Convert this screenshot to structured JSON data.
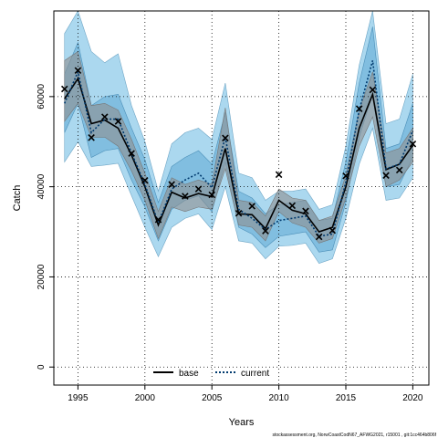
{
  "chart_data": {
    "type": "line",
    "xlabel": "Years",
    "ylabel": "Catch",
    "xlim": [
      1993.2,
      2021.2
    ],
    "ylim": [
      -4000,
      79000
    ],
    "x_ticks": [
      1995,
      2000,
      2005,
      2010,
      2015,
      2020
    ],
    "y_ticks": [
      0,
      20000,
      40000,
      60000
    ],
    "grid": true,
    "grid_style": "dotted",
    "legend_position": "bottom",
    "years": [
      1994,
      1995,
      1996,
      1997,
      1998,
      1999,
      2000,
      2001,
      2002,
      2003,
      2004,
      2005,
      2006,
      2007,
      2008,
      2009,
      2010,
      2011,
      2012,
      2013,
      2014,
      2015,
      2016,
      2017,
      2018,
      2019,
      2020
    ],
    "observed": {
      "marker": "x",
      "values": [
        61700,
        65800,
        50900,
        55500,
        54500,
        47400,
        41400,
        32700,
        40500,
        37900,
        39500,
        38200,
        50800,
        34100,
        35700,
        30200,
        42700,
        35800,
        34600,
        28900,
        30300,
        42400,
        57300,
        61500,
        42500,
        43700,
        49500
      ]
    },
    "series": [
      {
        "name": "base",
        "color": "#000000",
        "line_style": "solid",
        "band_color": "#909090",
        "values": [
          59500,
          64000,
          54000,
          54800,
          53000,
          47000,
          40000,
          31500,
          38800,
          37500,
          38500,
          37800,
          48500,
          34000,
          33800,
          30700,
          37000,
          34800,
          34000,
          30000,
          31000,
          40000,
          53000,
          60500,
          43800,
          45000,
          49200
        ],
        "inner": [
          [
            54500,
            68000
          ],
          [
            58500,
            70000
          ],
          [
            51000,
            58000
          ],
          [
            51000,
            58500
          ],
          [
            49000,
            57000
          ],
          [
            43500,
            50500
          ],
          [
            37000,
            43000
          ],
          [
            28500,
            34500
          ],
          [
            35500,
            42000
          ],
          [
            34500,
            40500
          ],
          [
            35500,
            41500
          ],
          [
            35000,
            40500
          ],
          [
            44000,
            57500
          ],
          [
            31500,
            37000
          ],
          [
            31000,
            36500
          ],
          [
            28000,
            33500
          ],
          [
            34500,
            39500
          ],
          [
            32000,
            37500
          ],
          [
            31000,
            37000
          ],
          [
            27500,
            32500
          ],
          [
            28500,
            33500
          ],
          [
            37500,
            42500
          ],
          [
            49000,
            57000
          ],
          [
            55500,
            65500
          ],
          [
            40000,
            47500
          ],
          [
            41500,
            48500
          ],
          [
            45500,
            53000
          ]
        ]
      },
      {
        "name": "current",
        "color": "#003a6e",
        "line_style": "dotted",
        "band_color": "#8fcbea",
        "values": [
          58500,
          65500,
          52000,
          55000,
          55000,
          47500,
          40500,
          32000,
          39500,
          41500,
          43000,
          39800,
          51000,
          35000,
          33000,
          30500,
          32500,
          33000,
          33500,
          29000,
          29500,
          41000,
          57000,
          68000,
          44000,
          45000,
          52500
        ],
        "outer": [
          [
            45500,
            74000
          ],
          [
            50000,
            82000
          ],
          [
            44500,
            70000
          ],
          [
            44800,
            67500
          ],
          [
            45200,
            69500
          ],
          [
            38000,
            58000
          ],
          [
            31000,
            50000
          ],
          [
            24500,
            39000
          ],
          [
            31000,
            49500
          ],
          [
            33000,
            52000
          ],
          [
            34000,
            53000
          ],
          [
            30500,
            50500
          ],
          [
            40000,
            63000
          ],
          [
            28000,
            43000
          ],
          [
            27500,
            42000
          ],
          [
            24000,
            37000
          ],
          [
            26800,
            39000
          ],
          [
            27000,
            39000
          ],
          [
            27500,
            39500
          ],
          [
            23000,
            35000
          ],
          [
            24000,
            36000
          ],
          [
            33000,
            49000
          ],
          [
            45000,
            67000
          ],
          [
            53000,
            82000
          ],
          [
            37000,
            54000
          ],
          [
            37500,
            55000
          ],
          [
            42000,
            65000
          ]
        ],
        "inner": [
          [
            52000,
            65000
          ],
          [
            58500,
            72000
          ],
          [
            46500,
            58000
          ],
          [
            48000,
            60000
          ],
          [
            48500,
            60500
          ],
          [
            41500,
            53000
          ],
          [
            35500,
            46000
          ],
          [
            28000,
            36500
          ],
          [
            35000,
            44500
          ],
          [
            37000,
            46500
          ],
          [
            38000,
            48000
          ],
          [
            34500,
            45000
          ],
          [
            45500,
            56500
          ],
          [
            31000,
            39000
          ],
          [
            29500,
            37500
          ],
          [
            26500,
            34000
          ],
          [
            29000,
            36000
          ],
          [
            29500,
            36500
          ],
          [
            30000,
            37000
          ],
          [
            25500,
            32500
          ],
          [
            26000,
            33000
          ],
          [
            36500,
            45500
          ],
          [
            51000,
            63000
          ],
          [
            60500,
            75500
          ],
          [
            40000,
            48500
          ],
          [
            40500,
            49500
          ],
          [
            46500,
            58500
          ]
        ]
      }
    ],
    "footnote": "stockassessment.org, NorwCoastCodN67_AFWG2021, r15001 , git:1cc464b806f"
  }
}
